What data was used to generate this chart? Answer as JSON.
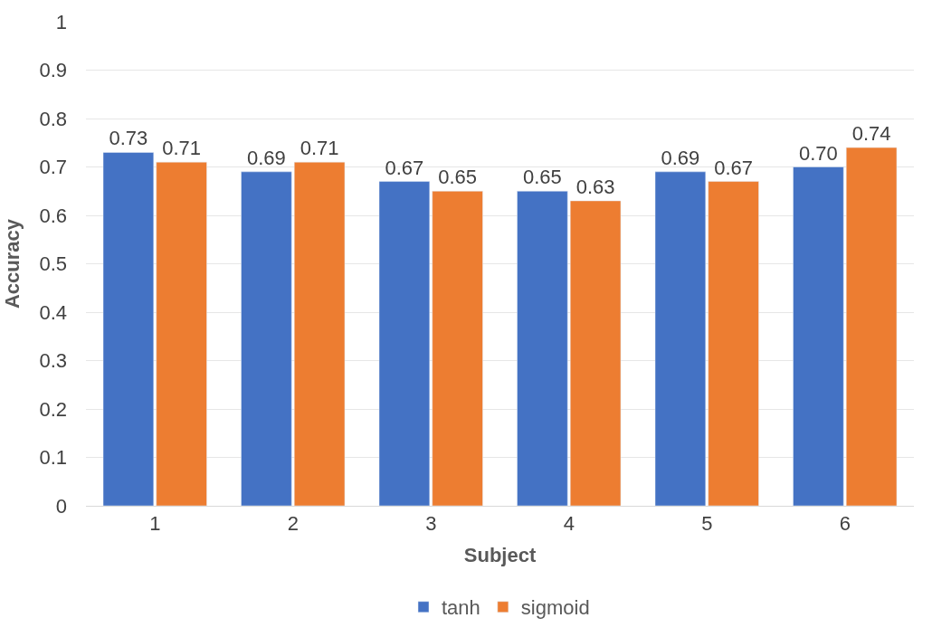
{
  "chart_data": {
    "type": "bar",
    "xlabel": "Subject",
    "ylabel": "Accuracy",
    "categories": [
      "1",
      "2",
      "3",
      "4",
      "5",
      "6"
    ],
    "series": [
      {
        "name": "tanh",
        "color": "#4472c4",
        "values": [
          0.73,
          0.69,
          0.67,
          0.65,
          0.69,
          0.7
        ],
        "value_labels": [
          "0.73",
          "0.69",
          "0.67",
          "0.65",
          "0.69",
          "0.70"
        ]
      },
      {
        "name": "sigmoid",
        "color": "#ed7d31",
        "values": [
          0.71,
          0.71,
          0.65,
          0.63,
          0.67,
          0.74
        ],
        "value_labels": [
          "0.71",
          "0.71",
          "0.65",
          "0.63",
          "0.67",
          "0.74"
        ]
      }
    ],
    "ylim": [
      0,
      1
    ],
    "yticks": [
      0,
      0.1,
      0.2,
      0.3,
      0.4,
      0.5,
      0.6,
      0.7,
      0.8,
      0.9,
      1
    ],
    "grid": "y",
    "legend": "bottom"
  }
}
